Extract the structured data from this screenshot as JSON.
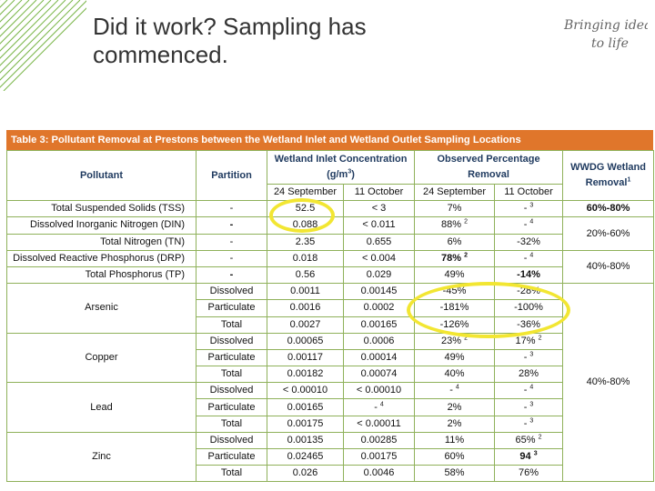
{
  "slide": {
    "title_line1": "Did it work? Sampling has",
    "title_line2": "commenced."
  },
  "logo": {
    "line1": "Bringing ideas",
    "line2": "to life"
  },
  "table": {
    "caption": "Table 3:  Pollutant Removal at Prestons between the Wetland Inlet and Wetland Outlet Sampling Locations",
    "headers": {
      "pollutant": "Pollutant",
      "partition": "Partition",
      "concentration_line1": "Wetland Inlet Concentration",
      "concentration_line2": "(g/m",
      "concentration_sup": "3",
      "concentration_close": ")",
      "observed_line1": "Observed Percentage",
      "observed_line2": "Removal",
      "wwdg_line1": "WWDG Wetland",
      "wwdg_line2": "Removal",
      "wwdg_sup": "1",
      "date1": "24 September",
      "date2": "11 October",
      "date3": "24 September",
      "date4": "11 October"
    },
    "rows": [
      {
        "pollutant": "Total Suspended Solids (TSS)",
        "partition": "-",
        "c1": "52.5",
        "c2": "< 3",
        "p1": "7%",
        "p1s": "",
        "p2": "- ",
        "p2s": "3",
        "wwdg": "60%-80%"
      },
      {
        "pollutant": "Dissolved Inorganic Nitrogen (DIN)",
        "partition": "-",
        "c1": "0.088",
        "c2": "< 0.011",
        "p1": "88% ",
        "p1s": "2",
        "p2": "- ",
        "p2s": "4",
        "wwdg": "20%-60%"
      },
      {
        "pollutant": "Total Nitrogen (TN)",
        "partition": "-",
        "c1": "2.35",
        "c2": "0.655",
        "p1": "6%",
        "p1s": "",
        "p2": "-32%",
        "p2s": ""
      },
      {
        "pollutant": "Dissolved Reactive Phosphorus (DRP)",
        "partition": "-",
        "c1": "0.018",
        "c2": "< 0.004",
        "p1": "78% ",
        "p1s": "2",
        "p2": "- ",
        "p2s": "4",
        "wwdg": "40%-80%"
      },
      {
        "pollutant": "Total Phosphorus (TP)",
        "partition": "-",
        "c1": "0.56",
        "c2": "0.029",
        "p1": "49%",
        "p1s": "",
        "p2": "-14%",
        "p2s": ""
      }
    ],
    "metals": [
      {
        "name": "Arsenic",
        "rows": [
          {
            "partition": "Dissolved",
            "c1": "0.0011",
            "c2": "0.00145",
            "p1": "-45%",
            "p1s": "",
            "p2": "-28%",
            "p2s": ""
          },
          {
            "partition": "Particulate",
            "c1": "0.0016",
            "c2": "0.0002",
            "p1": "-181%",
            "p1s": "",
            "p2": "-100%",
            "p2s": ""
          },
          {
            "partition": "Total",
            "c1": "0.0027",
            "c2": "0.00165",
            "p1": "-126%",
            "p1s": "",
            "p2": "-36%",
            "p2s": ""
          }
        ]
      },
      {
        "name": "Copper",
        "rows": [
          {
            "partition": "Dissolved",
            "c1": "0.00065",
            "c2": "0.0006",
            "p1": "23% ",
            "p1s": "2",
            "p2": "17% ",
            "p2s": "2"
          },
          {
            "partition": "Particulate",
            "c1": "0.00117",
            "c2": "0.00014",
            "p1": "49%",
            "p1s": "",
            "p2": "- ",
            "p2s": "3"
          },
          {
            "partition": "Total",
            "c1": "0.00182",
            "c2": "0.00074",
            "p1": "40%",
            "p1s": "",
            "p2": "28%",
            "p2s": ""
          }
        ]
      },
      {
        "name": "Lead",
        "rows": [
          {
            "partition": "Dissolved",
            "c1": "< 0.00010",
            "c2": "< 0.00010",
            "p1": "- ",
            "p1s": "4",
            "p2": "- ",
            "p2s": "4"
          },
          {
            "partition": "Particulate",
            "c1": "0.00165",
            "c2": "- ",
            "c2s": "4",
            "p1": "2%",
            "p1s": "",
            "p2": "- ",
            "p2s": "3"
          },
          {
            "partition": "Total",
            "c1": "0.00175",
            "c2": "< 0.00011",
            "p1": "2%",
            "p1s": "",
            "p2": "- ",
            "p2s": "3"
          }
        ]
      },
      {
        "name": "Zinc",
        "rows": [
          {
            "partition": "Dissolved",
            "c1": "0.00135",
            "c2": "0.00285",
            "p1": "11%",
            "p1s": "",
            "p2": "65% ",
            "p2s": "2"
          },
          {
            "partition": "Particulate",
            "c1": "0.02465",
            "c2": "0.00175",
            "p1": "60%",
            "p1s": "",
            "p2": "94 ",
            "p2s": "3"
          },
          {
            "partition": "Total",
            "c1": "0.026",
            "c2": "0.0046",
            "p1": "58%",
            "p1s": "",
            "p2": "76%",
            "p2s": ""
          }
        ]
      }
    ],
    "metals_wwdg": "40%-80%"
  },
  "colors": {
    "caption_bg": "#e0762b",
    "border": "#8fb15a",
    "header_text": "#1f3a5f",
    "highlight": "#f2e632",
    "stripe": "#7ab648"
  }
}
